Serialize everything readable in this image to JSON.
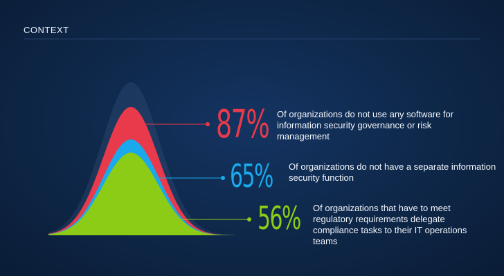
{
  "header": {
    "label": "CONTEXT"
  },
  "colors": {
    "background": "#0e2748",
    "red": "#e83a4a",
    "blue": "#19a9ec",
    "green": "#8ccc16",
    "rule": "#2c4a78"
  },
  "chart_data": {
    "type": "area",
    "title": "",
    "xlabel": "",
    "ylabel": "",
    "ylim": [
      0,
      100
    ],
    "grid": false,
    "series": [
      {
        "value": 87,
        "label": "87%",
        "description": "Of organizations do not use any software for information security governance or risk management",
        "color": "#e83a4a"
      },
      {
        "value": 65,
        "label": "65%",
        "description": "Of organizations do not have a separate information security function",
        "color": "#19a9ec"
      },
      {
        "value": 56,
        "label": "56%",
        "description": "Of organizations that have to meet regulatory requirements delegate compliance tasks to their IT operations teams",
        "color": "#8ccc16"
      }
    ]
  }
}
